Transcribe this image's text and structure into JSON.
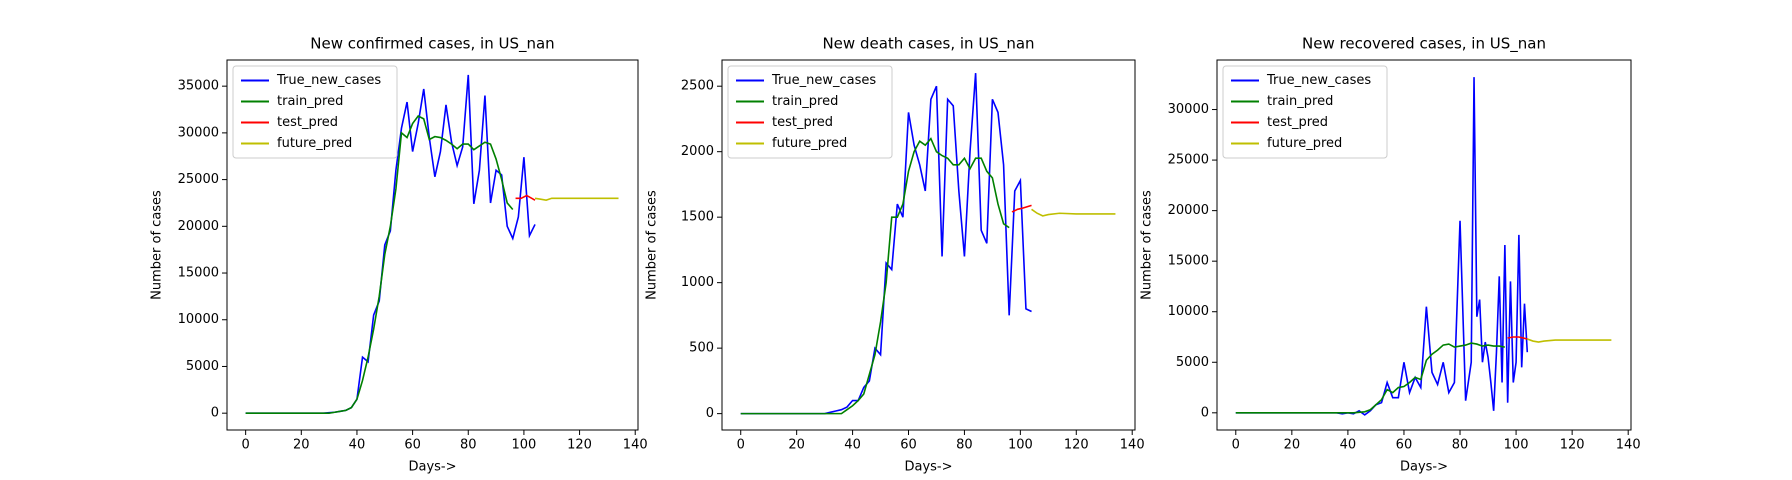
{
  "chart_data": [
    {
      "type": "line",
      "title": "New confirmed cases, in US_nan",
      "xlabel": "Days->",
      "ylabel": "Number of cases",
      "legend": "upper left",
      "xlim": [
        -6.7,
        141
      ],
      "xticks": [
        0,
        20,
        40,
        60,
        80,
        100,
        120,
        140
      ],
      "ylim": [
        -1800,
        37800
      ],
      "yticks": [
        0,
        5000,
        10000,
        15000,
        20000,
        25000,
        30000,
        35000
      ],
      "series": [
        {
          "name": "True_new_cases",
          "color": "#0000ff",
          "x": [
            0,
            2,
            4,
            6,
            8,
            10,
            12,
            14,
            16,
            18,
            20,
            22,
            24,
            26,
            28,
            30,
            32,
            34,
            36,
            38,
            40,
            42,
            44,
            46,
            48,
            50,
            52,
            54,
            56,
            58,
            60,
            62,
            64,
            66,
            68,
            70,
            72,
            74,
            76,
            78,
            80,
            82,
            84,
            86,
            88,
            90,
            92,
            94,
            96,
            98,
            100,
            102,
            104
          ],
          "values": [
            0,
            0,
            0,
            0,
            0,
            0,
            0,
            0,
            0,
            0,
            0,
            0,
            0,
            0,
            0,
            50,
            100,
            200,
            300,
            600,
            1500,
            6000,
            5500,
            10500,
            12000,
            18000,
            19500,
            26000,
            30500,
            33300,
            28000,
            31000,
            34700,
            29500,
            25300,
            28000,
            33000,
            29000,
            26500,
            28500,
            36200,
            22400,
            26000,
            34000,
            22500,
            26000,
            25500,
            20000,
            18700,
            21000,
            27400,
            19000,
            20200
          ]
        },
        {
          "name": "train_pred",
          "color": "#008000",
          "x": [
            0,
            2,
            4,
            6,
            8,
            10,
            12,
            14,
            16,
            18,
            20,
            22,
            24,
            26,
            28,
            30,
            32,
            34,
            36,
            38,
            40,
            42,
            44,
            46,
            48,
            50,
            52,
            54,
            56,
            58,
            60,
            62,
            64,
            66,
            68,
            70,
            72,
            74,
            76,
            78,
            80,
            82,
            84,
            86,
            88,
            90,
            92,
            94,
            96
          ],
          "values": [
            0,
            0,
            0,
            0,
            0,
            0,
            0,
            0,
            0,
            0,
            0,
            0,
            0,
            0,
            0,
            0,
            100,
            200,
            300,
            600,
            1500,
            3500,
            6000,
            9000,
            12500,
            17000,
            20000,
            24000,
            30000,
            29500,
            31000,
            31800,
            31500,
            29300,
            29600,
            29500,
            29200,
            28800,
            28300,
            28800,
            28800,
            28200,
            28600,
            29000,
            28800,
            27200,
            25000,
            22500,
            21800
          ]
        },
        {
          "name": "test_pred",
          "color": "#ff0000",
          "x": [
            97,
            99,
            101,
            104
          ],
          "values": [
            23000,
            23000,
            23300,
            22800
          ]
        },
        {
          "name": "future_pred",
          "color": "#bfbf00",
          "x": [
            104,
            106,
            108,
            110,
            114,
            120,
            127,
            134
          ],
          "values": [
            23000,
            22900,
            22800,
            23000,
            23000,
            23000,
            23000,
            23000
          ]
        }
      ]
    },
    {
      "type": "line",
      "title": "New death cases, in US_nan",
      "xlabel": "Days->",
      "ylabel": "Number of cases",
      "legend": "upper left",
      "xlim": [
        -6.7,
        141
      ],
      "xticks": [
        0,
        20,
        40,
        60,
        80,
        100,
        120,
        140
      ],
      "ylim": [
        -125,
        2700
      ],
      "yticks": [
        0,
        500,
        1000,
        1500,
        2000,
        2500
      ],
      "series": [
        {
          "name": "True_new_cases",
          "color": "#0000ff",
          "x": [
            0,
            2,
            4,
            6,
            8,
            10,
            12,
            14,
            16,
            18,
            20,
            22,
            24,
            26,
            28,
            30,
            32,
            34,
            36,
            38,
            40,
            42,
            44,
            46,
            48,
            50,
            52,
            54,
            56,
            58,
            60,
            62,
            64,
            66,
            68,
            70,
            72,
            74,
            76,
            78,
            80,
            82,
            84,
            86,
            88,
            90,
            92,
            94,
            96,
            98,
            100,
            102,
            104
          ],
          "values": [
            0,
            0,
            0,
            0,
            0,
            0,
            0,
            0,
            0,
            0,
            0,
            0,
            0,
            0,
            0,
            0,
            10,
            20,
            30,
            50,
            100,
            100,
            200,
            250,
            500,
            450,
            1150,
            1100,
            1600,
            1500,
            2300,
            2050,
            1900,
            1700,
            2400,
            2500,
            1200,
            2400,
            2350,
            1700,
            1200,
            2000,
            2600,
            1400,
            1300,
            2400,
            2300,
            1900,
            750,
            1700,
            1780,
            800,
            780
          ]
        },
        {
          "name": "train_pred",
          "color": "#008000",
          "x": [
            0,
            2,
            4,
            6,
            8,
            10,
            12,
            14,
            16,
            18,
            20,
            22,
            24,
            26,
            28,
            30,
            32,
            34,
            36,
            38,
            40,
            42,
            44,
            46,
            48,
            50,
            52,
            54,
            56,
            58,
            60,
            62,
            64,
            66,
            68,
            70,
            72,
            74,
            76,
            78,
            80,
            82,
            84,
            86,
            88,
            90,
            92,
            94,
            96
          ],
          "values": [
            0,
            0,
            0,
            0,
            0,
            0,
            0,
            0,
            0,
            0,
            0,
            0,
            0,
            0,
            0,
            0,
            0,
            0,
            0,
            30,
            60,
            100,
            150,
            300,
            450,
            700,
            1000,
            1500,
            1500,
            1600,
            1850,
            2000,
            2080,
            2050,
            2100,
            2000,
            1970,
            1950,
            1900,
            1900,
            1950,
            1870,
            1950,
            1950,
            1850,
            1800,
            1600,
            1450,
            1420
          ]
        },
        {
          "name": "test_pred",
          "color": "#ff0000",
          "x": [
            97,
            99,
            101,
            104
          ],
          "values": [
            1540,
            1560,
            1570,
            1590
          ]
        },
        {
          "name": "future_pred",
          "color": "#bfbf00",
          "x": [
            104,
            106,
            108,
            110,
            114,
            120,
            127,
            134
          ],
          "values": [
            1560,
            1530,
            1510,
            1520,
            1530,
            1525,
            1525,
            1525
          ]
        }
      ]
    },
    {
      "type": "line",
      "title": "New recovered cases, in US_nan",
      "xlabel": "Days->",
      "ylabel": "Number of cases",
      "legend": "upper left",
      "xlim": [
        -6.7,
        141
      ],
      "xticks": [
        0,
        20,
        40,
        60,
        80,
        100,
        120,
        140
      ],
      "ylim": [
        -1700,
        34900
      ],
      "yticks": [
        0,
        5000,
        10000,
        15000,
        20000,
        25000,
        30000
      ],
      "series": [
        {
          "name": "True_new_cases",
          "color": "#0000ff",
          "x": [
            0,
            2,
            4,
            6,
            8,
            10,
            12,
            14,
            16,
            18,
            20,
            22,
            24,
            26,
            28,
            30,
            32,
            34,
            36,
            38,
            40,
            42,
            44,
            46,
            48,
            50,
            52,
            54,
            56,
            58,
            60,
            62,
            64,
            66,
            68,
            70,
            72,
            74,
            76,
            78,
            80,
            82,
            84,
            85,
            86,
            87,
            88,
            89,
            90,
            91,
            92,
            93,
            94,
            95,
            96,
            97,
            98,
            99,
            100,
            101,
            102,
            103,
            104
          ],
          "values": [
            0,
            0,
            0,
            0,
            0,
            0,
            0,
            0,
            0,
            0,
            0,
            0,
            0,
            0,
            0,
            0,
            0,
            0,
            0,
            -100,
            0,
            -100,
            200,
            -200,
            200,
            800,
            1000,
            3000,
            1500,
            1500,
            5000,
            2000,
            3500,
            2500,
            10500,
            4000,
            2800,
            5000,
            2000,
            3000,
            19000,
            1200,
            5000,
            33200,
            9500,
            11200,
            5000,
            7000,
            5500,
            3000,
            200,
            6000,
            13500,
            3000,
            16600,
            1000,
            13000,
            3000,
            5000,
            17600,
            4500,
            10800,
            6000
          ]
        },
        {
          "name": "train_pred",
          "color": "#008000",
          "x": [
            0,
            2,
            4,
            6,
            8,
            10,
            12,
            14,
            16,
            18,
            20,
            22,
            24,
            26,
            28,
            30,
            32,
            34,
            36,
            38,
            40,
            42,
            44,
            46,
            48,
            50,
            52,
            54,
            56,
            58,
            60,
            62,
            64,
            66,
            68,
            70,
            72,
            74,
            76,
            78,
            80,
            82,
            84,
            86,
            88,
            90,
            92,
            94,
            96
          ],
          "values": [
            0,
            0,
            0,
            0,
            0,
            0,
            0,
            0,
            0,
            0,
            0,
            0,
            0,
            0,
            0,
            0,
            0,
            0,
            0,
            0,
            0,
            0,
            50,
            100,
            300,
            800,
            1300,
            2300,
            2000,
            2500,
            2600,
            3000,
            3500,
            3300,
            5200,
            5800,
            6200,
            6700,
            6800,
            6500,
            6600,
            6700,
            6900,
            6800,
            6600,
            6700,
            6600,
            6600,
            6500
          ]
        },
        {
          "name": "test_pred",
          "color": "#ff0000",
          "x": [
            97,
            99,
            101,
            104
          ],
          "values": [
            7400,
            7500,
            7500,
            7300
          ]
        },
        {
          "name": "future_pred",
          "color": "#bfbf00",
          "x": [
            104,
            106,
            108,
            110,
            114,
            120,
            127,
            134
          ],
          "values": [
            7300,
            7100,
            7000,
            7100,
            7200,
            7200,
            7200,
            7200
          ]
        }
      ]
    }
  ]
}
